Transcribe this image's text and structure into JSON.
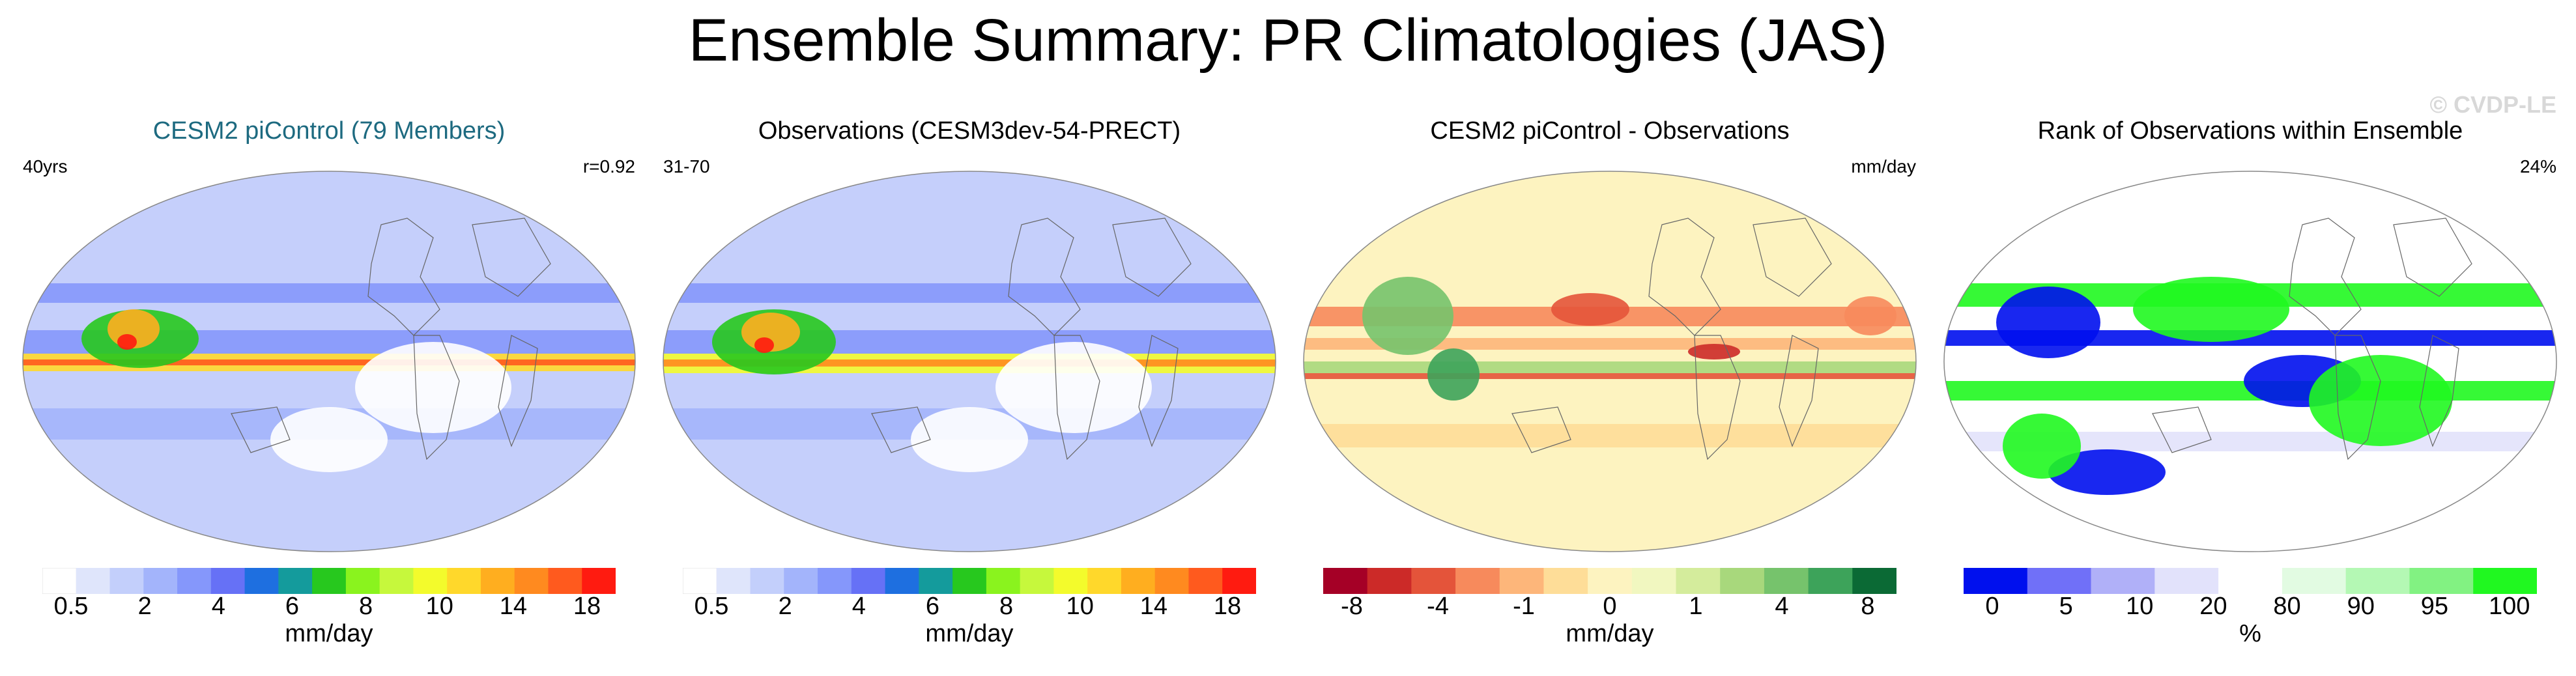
{
  "title": "Ensemble Summary: PR Climatologies (JAS)",
  "watermark": "© CVDP-LE",
  "panels": [
    {
      "title": "CESM2 piControl (79 Members)",
      "title_color": "#1d6a80",
      "left_label": "40yrs",
      "right_label": "r=0.92",
      "colorbar": {
        "colors": [
          "#ffffff",
          "#dfe5fb",
          "#c3cffb",
          "#a3b4fb",
          "#8597fb",
          "#6671f6",
          "#1e6fe0",
          "#149b9c",
          "#27c81e",
          "#8af31e",
          "#c6f83c",
          "#f3fb2c",
          "#ffd82b",
          "#ffae1f",
          "#ff8a1f",
          "#ff5a1e",
          "#ff1b10"
        ],
        "labels": [
          "0.5",
          "2",
          "4",
          "6",
          "8",
          "10",
          "14",
          "18"
        ],
        "unit": "mm/day"
      }
    },
    {
      "title": "Observations (CESM3dev-54-PRECT)",
      "title_color": "#000000",
      "left_label": "31-70",
      "right_label": "",
      "colorbar": {
        "colors": [
          "#ffffff",
          "#dfe5fb",
          "#c3cffb",
          "#a3b4fb",
          "#8597fb",
          "#6671f6",
          "#1e6fe0",
          "#149b9c",
          "#27c81e",
          "#8af31e",
          "#c6f83c",
          "#f3fb2c",
          "#ffd82b",
          "#ffae1f",
          "#ff8a1f",
          "#ff5a1e",
          "#ff1b10"
        ],
        "labels": [
          "0.5",
          "2",
          "4",
          "6",
          "8",
          "10",
          "14",
          "18"
        ],
        "unit": "mm/day"
      }
    },
    {
      "title": "CESM2 piControl - Observations",
      "title_color": "#000000",
      "left_label": "",
      "right_label": "mm/day",
      "colorbar": {
        "colors": [
          "#a50026",
          "#cc2a28",
          "#e4543a",
          "#f78a5c",
          "#fdb67a",
          "#fedd98",
          "#fdf3c0",
          "#f1f7c0",
          "#d4ec9c",
          "#a8d87c",
          "#76c36c",
          "#3da35a",
          "#0b6a35"
        ],
        "labels": [
          "-8",
          "-4",
          "-1",
          "0",
          "1",
          "4",
          "8"
        ],
        "unit": "mm/day"
      }
    },
    {
      "title": "Rank of Observations within Ensemble",
      "title_color": "#000000",
      "left_label": "",
      "right_label": "24%",
      "colorbar": {
        "colors": [
          "#0010ee",
          "#7070f8",
          "#b0b0f8",
          "#e2e2fb",
          "#ffffff",
          "#e2fbe2",
          "#b4f8b4",
          "#82f282",
          "#20f820"
        ],
        "labels": [
          "0",
          "5",
          "10",
          "20",
          "80",
          "90",
          "95",
          "100"
        ],
        "unit": "%"
      }
    }
  ]
}
